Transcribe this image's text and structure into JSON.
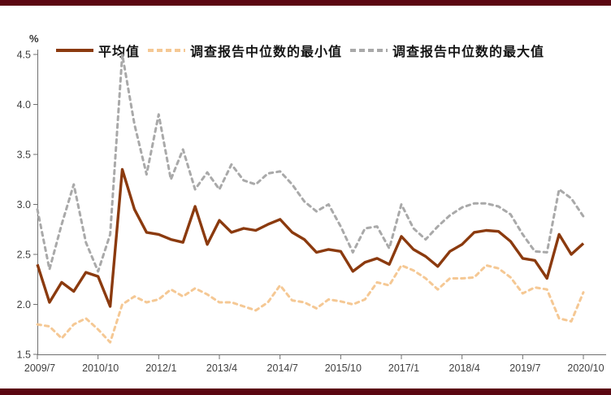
{
  "page": {
    "background": "#ffffff",
    "top_bar_color": "#5b0712",
    "bottom_bar_color": "#5b0712",
    "axis_color": "#6f6f6f",
    "tick_text_color": "#3f3f3f"
  },
  "chart_data": {
    "type": "line",
    "unit_label": "%",
    "grid": false,
    "legend_position": "top",
    "ylim": [
      1.5,
      4.5
    ],
    "y_ticks": [
      4.5,
      4.0,
      3.5,
      3.0,
      2.5,
      2.0,
      1.5
    ],
    "x_tick_labels": [
      "2009/7",
      "2010/10",
      "2012/1",
      "2013/4",
      "2014/7",
      "2015/10",
      "2017/1",
      "2018/4",
      "2019/7",
      "2020/10"
    ],
    "categories": [
      "2009/7",
      "2009/10",
      "2010/1",
      "2010/4",
      "2010/7",
      "2010/10",
      "2011/1",
      "2011/4",
      "2011/7",
      "2011/10",
      "2012/1",
      "2012/4",
      "2012/7",
      "2012/10",
      "2013/1",
      "2013/4",
      "2013/7",
      "2013/10",
      "2014/1",
      "2014/4",
      "2014/7",
      "2014/10",
      "2015/1",
      "2015/4",
      "2015/7",
      "2015/10",
      "2016/1",
      "2016/4",
      "2016/7",
      "2016/10",
      "2017/1",
      "2017/4",
      "2017/7",
      "2017/10",
      "2018/1",
      "2018/4",
      "2018/7",
      "2018/10",
      "2019/1",
      "2019/4",
      "2019/7",
      "2019/10",
      "2020/1",
      "2020/4",
      "2020/7",
      "2020/10"
    ],
    "series": [
      {
        "name": "平均值",
        "color": "#8b3a0e",
        "line_style": "solid",
        "values": [
          2.4,
          2.02,
          2.22,
          2.13,
          2.32,
          2.28,
          1.98,
          3.35,
          2.95,
          2.72,
          2.7,
          2.65,
          2.62,
          2.98,
          2.6,
          2.84,
          2.72,
          2.76,
          2.74,
          2.8,
          2.85,
          2.72,
          2.65,
          2.52,
          2.55,
          2.53,
          2.33,
          2.42,
          2.46,
          2.4,
          2.68,
          2.55,
          2.48,
          2.38,
          2.53,
          2.6,
          2.72,
          2.74,
          2.73,
          2.63,
          2.46,
          2.44,
          2.26,
          2.7,
          2.5,
          2.61
        ]
      },
      {
        "name": "调查报告中位数的最小值",
        "color": "#f5c894",
        "line_style": "dashed",
        "values": [
          1.8,
          1.78,
          1.66,
          1.8,
          1.86,
          1.75,
          1.62,
          2.0,
          2.08,
          2.02,
          2.05,
          2.15,
          2.08,
          2.16,
          2.1,
          2.02,
          2.02,
          1.98,
          1.94,
          2.02,
          2.19,
          2.04,
          2.02,
          1.96,
          2.05,
          2.03,
          2.0,
          2.05,
          2.22,
          2.19,
          2.39,
          2.34,
          2.26,
          2.15,
          2.26,
          2.26,
          2.27,
          2.39,
          2.36,
          2.27,
          2.11,
          2.17,
          2.15,
          1.86,
          1.83,
          2.12
        ]
      },
      {
        "name": "调查报告中位数的最大值",
        "color": "#a9a9a9",
        "line_style": "dashed",
        "values": [
          2.95,
          2.35,
          2.8,
          3.2,
          2.62,
          2.33,
          2.7,
          4.5,
          3.8,
          3.3,
          3.9,
          3.25,
          3.55,
          3.15,
          3.32,
          3.15,
          3.4,
          3.24,
          3.2,
          3.31,
          3.33,
          3.2,
          3.03,
          2.93,
          3.0,
          2.78,
          2.52,
          2.76,
          2.78,
          2.56,
          3.0,
          2.76,
          2.65,
          2.78,
          2.89,
          2.97,
          3.01,
          3.01,
          2.98,
          2.9,
          2.7,
          2.53,
          2.52,
          3.15,
          3.06,
          2.88
        ]
      }
    ]
  }
}
